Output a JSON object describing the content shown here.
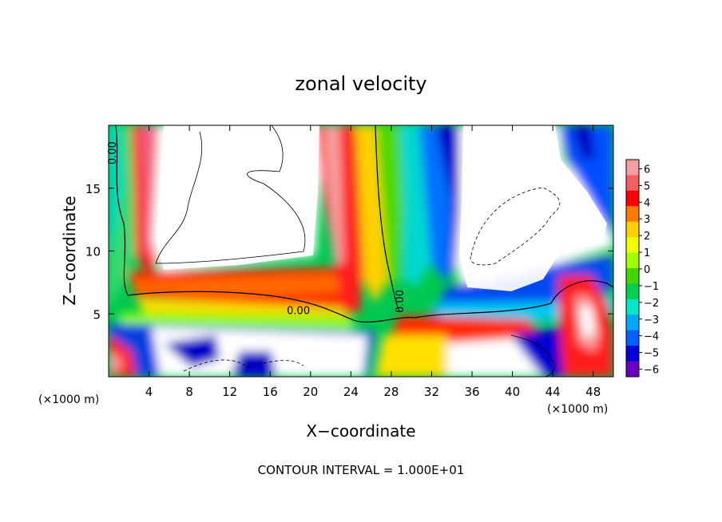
{
  "chart_data": {
    "type": "heatmap",
    "title": "zonal velocity",
    "xlabel": "X−coordinate",
    "ylabel": "Z−coordinate",
    "x_unit": "(×1000 m)",
    "x_unit_right": "(×1000 m)",
    "footer": "CONTOUR INTERVAL = 1.000E+01",
    "xlim": [
      0,
      50
    ],
    "ylim": [
      0,
      20
    ],
    "x_ticks": [
      "4",
      "8",
      "12",
      "16",
      "20",
      "24",
      "28",
      "32",
      "36",
      "40",
      "44",
      "48"
    ],
    "x_tick_values": [
      4,
      8,
      12,
      16,
      20,
      24,
      28,
      32,
      36,
      40,
      44,
      48
    ],
    "y_ticks": [
      "5",
      "10",
      "15"
    ],
    "y_tick_values": [
      5,
      10,
      15
    ],
    "colorbar_ticks": [
      "6",
      "5",
      "4",
      "3",
      "2",
      "1",
      "0",
      "−1",
      "−2",
      "−3",
      "−4",
      "−5",
      "−6"
    ],
    "colorbar_values": [
      6,
      5,
      4,
      3,
      2,
      1,
      0,
      -1,
      -2,
      -3,
      -4,
      -5,
      -6
    ],
    "contour_labels": [
      {
        "text": "0.00",
        "x": 18.8,
        "y": 5.0
      },
      {
        "text": "0.00",
        "x": 0.7,
        "y": 17.8
      },
      {
        "text": "0.00",
        "x": 29.2,
        "y": 6.0
      }
    ]
  },
  "colors": {
    "colorbar": [
      "#f4a0a0",
      "#f46060",
      "#ff0000",
      "#ff7a00",
      "#ffd000",
      "#f0ff00",
      "#a0ff00",
      "#40d800",
      "#00d050",
      "#00e8c8",
      "#00a8ff",
      "#0060ff",
      "#0000d8",
      "#6a00c0"
    ]
  }
}
